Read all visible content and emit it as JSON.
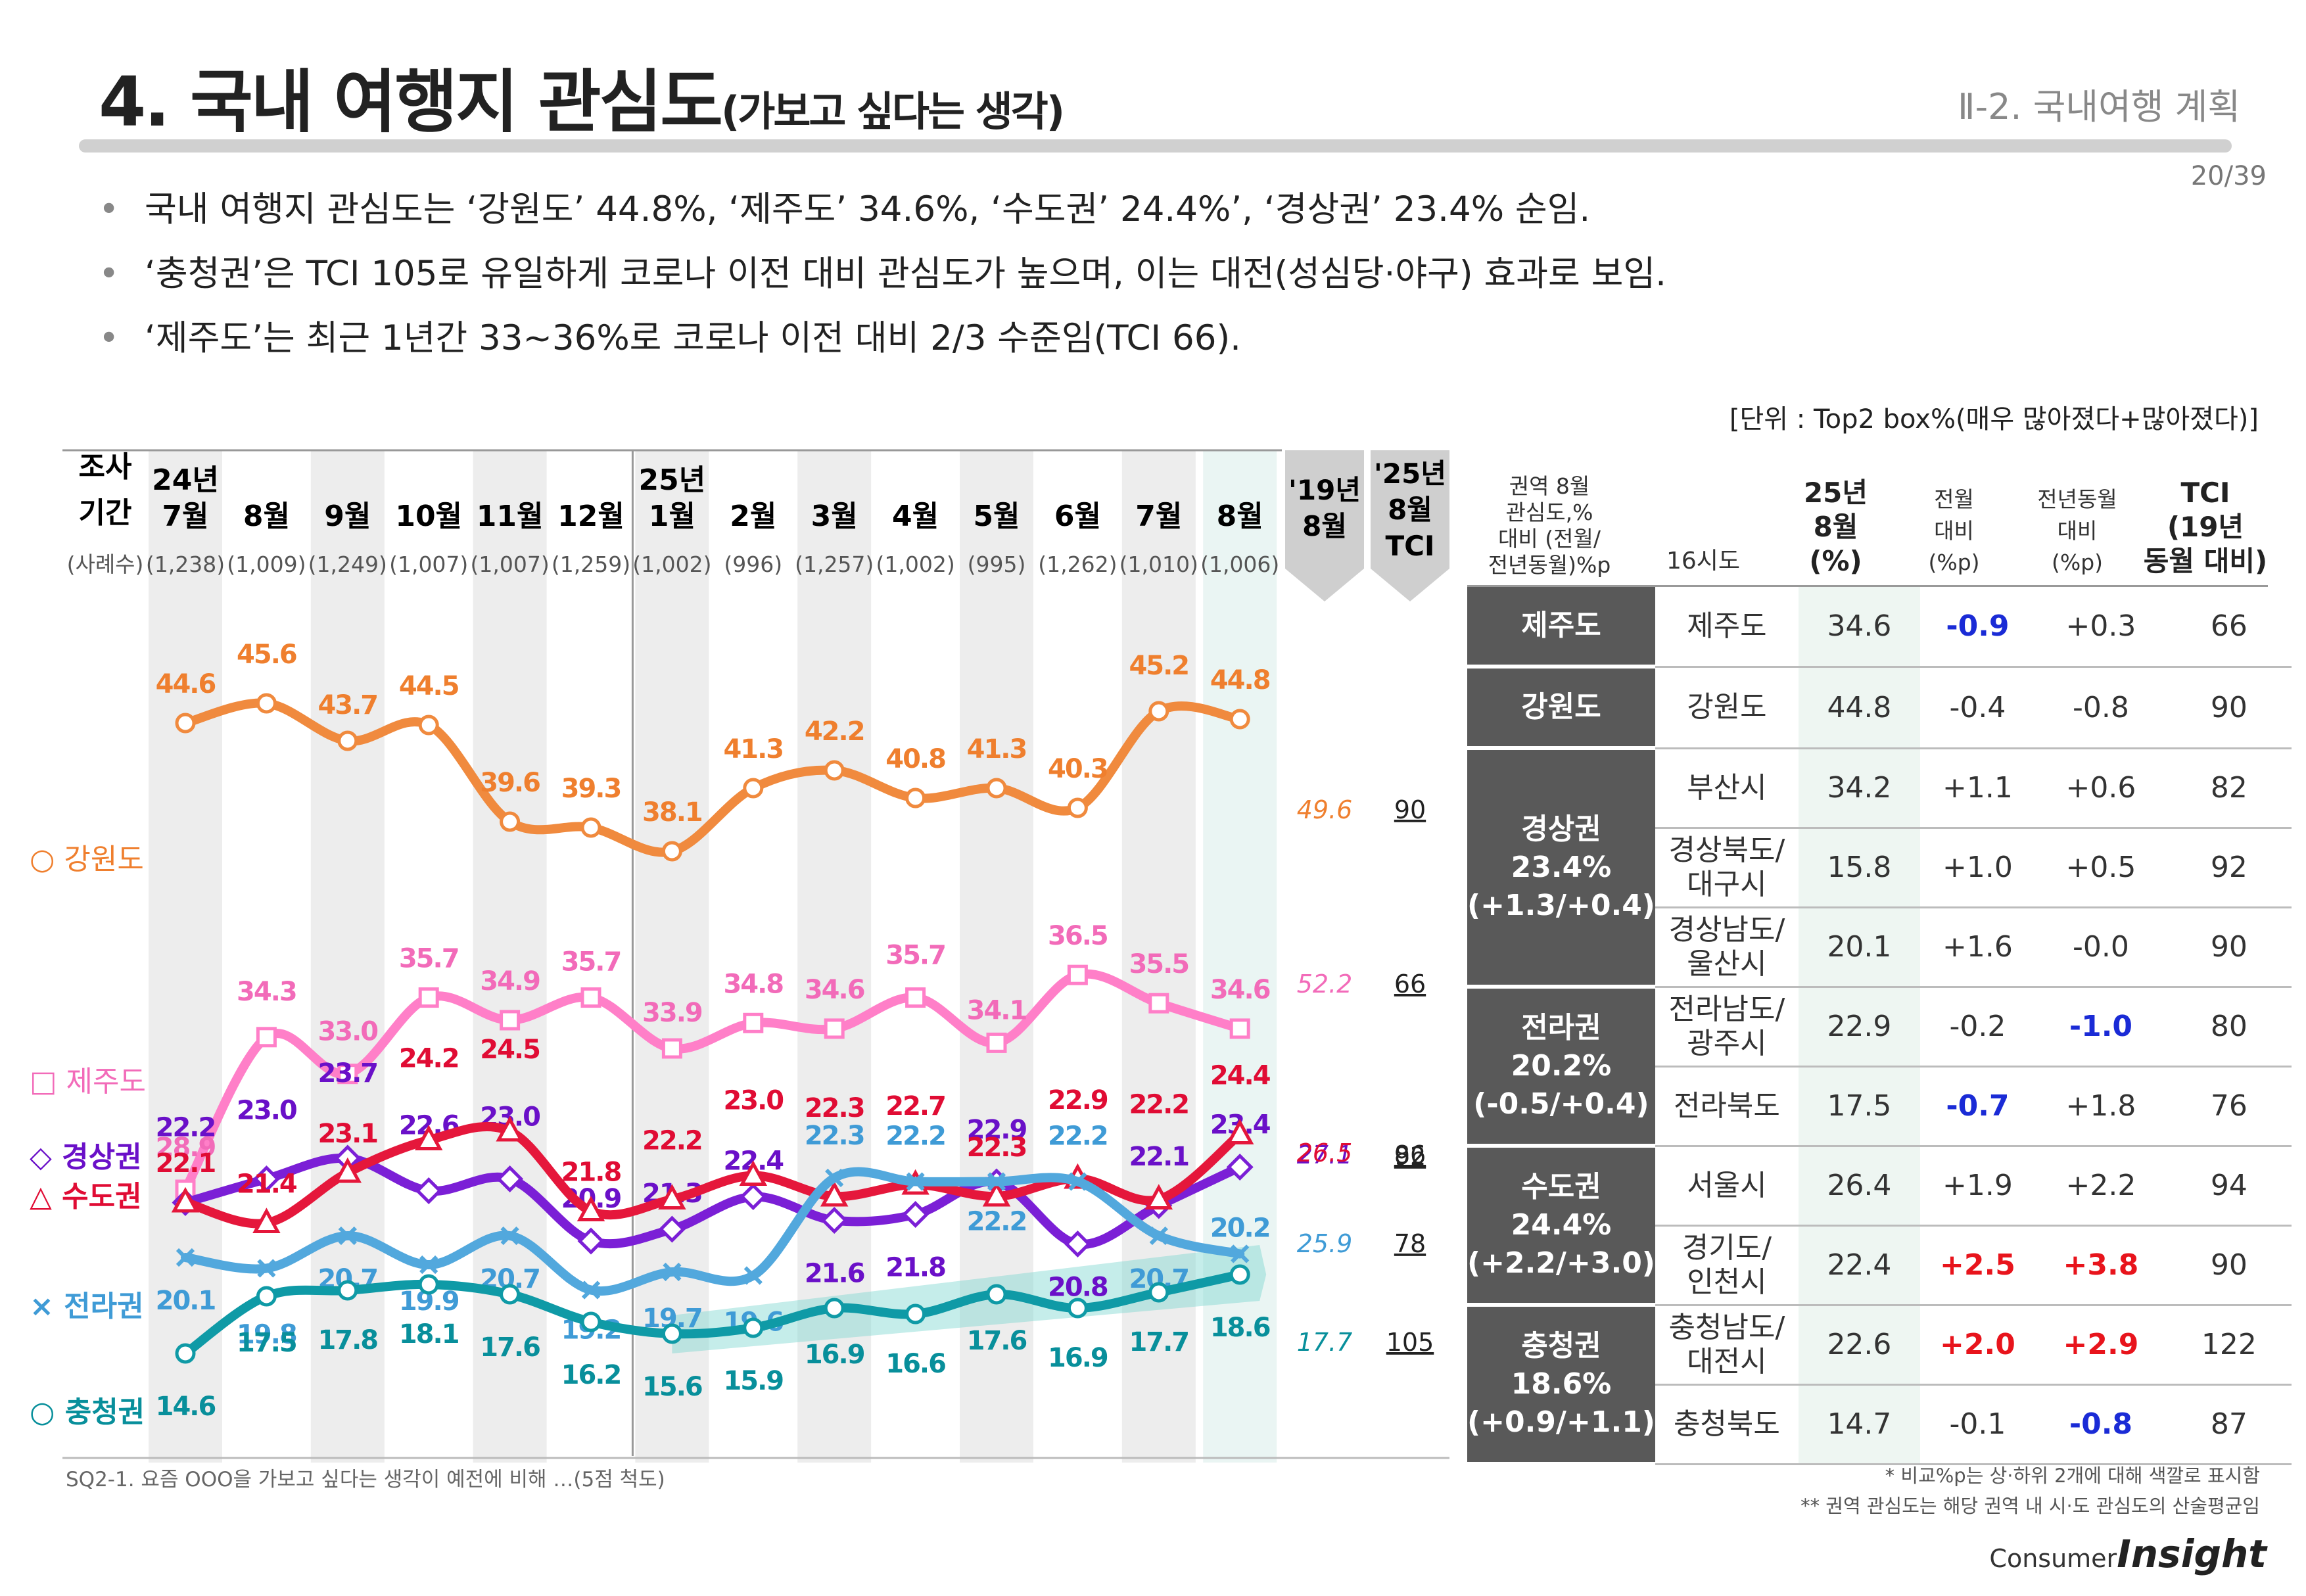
{
  "header": {
    "title": "4. 국내 여행지 관심도",
    "title_suffix": "(가보고 싶다는 생각)",
    "section": "Ⅱ-2. 국내여행 계획",
    "page": "20/39"
  },
  "bullets": [
    "국내 여행지 관심도는 ‘강원도’ 44.8%, ‘제주도’ 34.6%, ‘수도권’ 24.4%’, ‘경상권’ 23.4% 순임.",
    "‘충청권’은 TCI 105로 유일하게 코로나 이전 대비 관심도가 높으며, 이는 대전(성심당·야구) 효과로 보임.",
    "‘제주도’는 최근 1년간 33~36%로 코로나 이전 대비 2/3 수준임(TCI 66)."
  ],
  "unit": "[단위 : Top2 box%(매우 많아졌다+많아졌다)]",
  "footnote": "SQ2-1. 요즘 OOO을 가보고 싶다는 생각이 예전에 비해 …(5점 척도)",
  "notes": [
    "* 비교%p는 상·하위 2개에 대해 색깔로 표시함",
    "** 권역 관심도는 해당 권역 내 시·도 관심도의 산술평균임"
  ],
  "logo": {
    "line1": "Consumer",
    "line2": "Insight"
  },
  "chart_header": {
    "period_label_1": "조사",
    "period_label_2": "기간",
    "sample_label": "(사례수)",
    "col_19": [
      "'19년",
      "8월"
    ],
    "col_25": [
      "'25년",
      "8월",
      "TCI"
    ]
  },
  "chart_data": {
    "type": "line",
    "x": [
      "24년 7월",
      "8월",
      "9월",
      "10월",
      "11월",
      "12월",
      "25년 1월",
      "2월",
      "3월",
      "4월",
      "5월",
      "6월",
      "7월",
      "8월"
    ],
    "x_top": [
      "24년",
      "",
      "",
      "",
      "",
      "",
      "25년",
      "",
      "",
      "",
      "",
      "",
      "",
      ""
    ],
    "x_bottom": [
      "7월",
      "8월",
      "9월",
      "10월",
      "11월",
      "12월",
      "1월",
      "2월",
      "3월",
      "4월",
      "5월",
      "6월",
      "7월",
      "8월"
    ],
    "sample_sizes": [
      "(1,238)",
      "(1,009)",
      "(1,249)",
      "(1,007)",
      "(1,007)",
      "(1,259)",
      "(1,002)",
      "(996)",
      "(1,257)",
      "(1,002)",
      "(995)",
      "(1,262)",
      "(1,010)",
      "(1,006)"
    ],
    "series": [
      {
        "name": "○ 강원도",
        "color": "#f08a3e",
        "label_color": "#ef7f2e",
        "marker": "circle",
        "values": [
          44.6,
          45.6,
          43.7,
          44.5,
          39.6,
          39.3,
          38.1,
          41.3,
          42.2,
          40.8,
          41.3,
          40.3,
          45.2,
          44.8
        ],
        "pre_covid": "49.6",
        "tci": "90"
      },
      {
        "name": "□ 제주도",
        "color": "#ff7fc8",
        "label_color": "#f26bb9",
        "marker": "square",
        "values": [
          28.9,
          34.3,
          33.0,
          35.7,
          34.9,
          35.7,
          33.9,
          34.8,
          34.6,
          35.7,
          34.1,
          36.5,
          35.5,
          34.6
        ],
        "pre_covid": "52.2",
        "tci": "66"
      },
      {
        "name": "◇ 경상권",
        "color": "#7b1fd6",
        "label_color": "#6a10c8",
        "marker": "diamond",
        "values": [
          22.2,
          23.0,
          23.7,
          22.6,
          23.0,
          20.9,
          21.3,
          22.4,
          21.6,
          21.8,
          22.9,
          20.8,
          22.1,
          23.4
        ],
        "pre_covid": "27.1",
        "tci": "86"
      },
      {
        "name": "△ 수도권",
        "color": "#e5173b",
        "label_color": "#e00c34",
        "marker": "triangle",
        "values": [
          22.1,
          21.4,
          23.1,
          24.2,
          24.5,
          21.8,
          22.2,
          23.0,
          22.3,
          22.7,
          22.3,
          22.9,
          22.2,
          24.4
        ],
        "pre_covid": "26.5",
        "tci": "92"
      },
      {
        "name": "× 전라권",
        "color": "#52a8dd",
        "label_color": "#3f9bd6",
        "marker": "cross",
        "values": [
          20.1,
          19.8,
          20.7,
          19.9,
          20.7,
          19.2,
          19.7,
          19.6,
          22.3,
          22.2,
          22.2,
          22.2,
          20.7,
          20.2
        ],
        "pre_covid": "25.9",
        "tci": "78"
      },
      {
        "name": "○ 충청권",
        "color": "#0f9aa6",
        "label_color": "#088f9b",
        "marker": "circle",
        "values": [
          14.6,
          17.5,
          17.8,
          18.1,
          17.6,
          16.2,
          15.6,
          15.9,
          16.9,
          16.6,
          17.6,
          16.9,
          17.7,
          18.6
        ],
        "pre_covid": "17.7",
        "tci": "105"
      }
    ]
  },
  "table": {
    "headers": [
      "권역 8월\n관심도,%\n대비 (전월/\n전년동월)%p",
      "16시도",
      "25년\n8월\n(%)",
      "전월\n대비\n(%p)",
      "전년동월\n대비\n(%p)",
      "TCI\n(19년\n동월 대비)"
    ],
    "regions": [
      {
        "name": "제주도",
        "rows": [
          {
            "city": "제주도",
            "pct": "34.6",
            "mom": "-0.9",
            "mom_c": "blue",
            "yoy": "+0.3",
            "yoy_c": "",
            "tci": "66"
          }
        ]
      },
      {
        "name": "강원도",
        "rows": [
          {
            "city": "강원도",
            "pct": "44.8",
            "mom": "-0.4",
            "mom_c": "",
            "yoy": "-0.8",
            "yoy_c": "",
            "tci": "90"
          }
        ]
      },
      {
        "name": "경상권\n23.4%\n(+1.3/+0.4)",
        "rows": [
          {
            "city": "부산시",
            "pct": "34.2",
            "mom": "+1.1",
            "mom_c": "",
            "yoy": "+0.6",
            "yoy_c": "",
            "tci": "82"
          },
          {
            "city": "경상북도/\n대구시",
            "pct": "15.8",
            "mom": "+1.0",
            "mom_c": "",
            "yoy": "+0.5",
            "yoy_c": "",
            "tci": "92"
          },
          {
            "city": "경상남도/\n울산시",
            "pct": "20.1",
            "mom": "+1.6",
            "mom_c": "",
            "yoy": "-0.0",
            "yoy_c": "",
            "tci": "90"
          }
        ]
      },
      {
        "name": "전라권\n20.2%\n(-0.5/+0.4)",
        "rows": [
          {
            "city": "전라남도/\n광주시",
            "pct": "22.9",
            "mom": "-0.2",
            "mom_c": "",
            "yoy": "-1.0",
            "yoy_c": "blue",
            "tci": "80"
          },
          {
            "city": "전라북도",
            "pct": "17.5",
            "mom": "-0.7",
            "mom_c": "blue",
            "yoy": "+1.8",
            "yoy_c": "",
            "tci": "76"
          }
        ]
      },
      {
        "name": "수도권\n24.4%\n(+2.2/+3.0)",
        "rows": [
          {
            "city": "서울시",
            "pct": "26.4",
            "mom": "+1.9",
            "mom_c": "",
            "yoy": "+2.2",
            "yoy_c": "",
            "tci": "94"
          },
          {
            "city": "경기도/\n인천시",
            "pct": "22.4",
            "mom": "+2.5",
            "mom_c": "red",
            "yoy": "+3.8",
            "yoy_c": "red",
            "tci": "90"
          }
        ]
      },
      {
        "name": "충청권\n18.6%\n(+0.9/+1.1)",
        "rows": [
          {
            "city": "충청남도/\n대전시",
            "pct": "22.6",
            "mom": "+2.0",
            "mom_c": "red",
            "yoy": "+2.9",
            "yoy_c": "red",
            "tci": "122"
          },
          {
            "city": "충청북도",
            "pct": "14.7",
            "mom": "-0.1",
            "mom_c": "",
            "yoy": "-0.8",
            "yoy_c": "blue",
            "tci": "87"
          }
        ]
      }
    ]
  }
}
